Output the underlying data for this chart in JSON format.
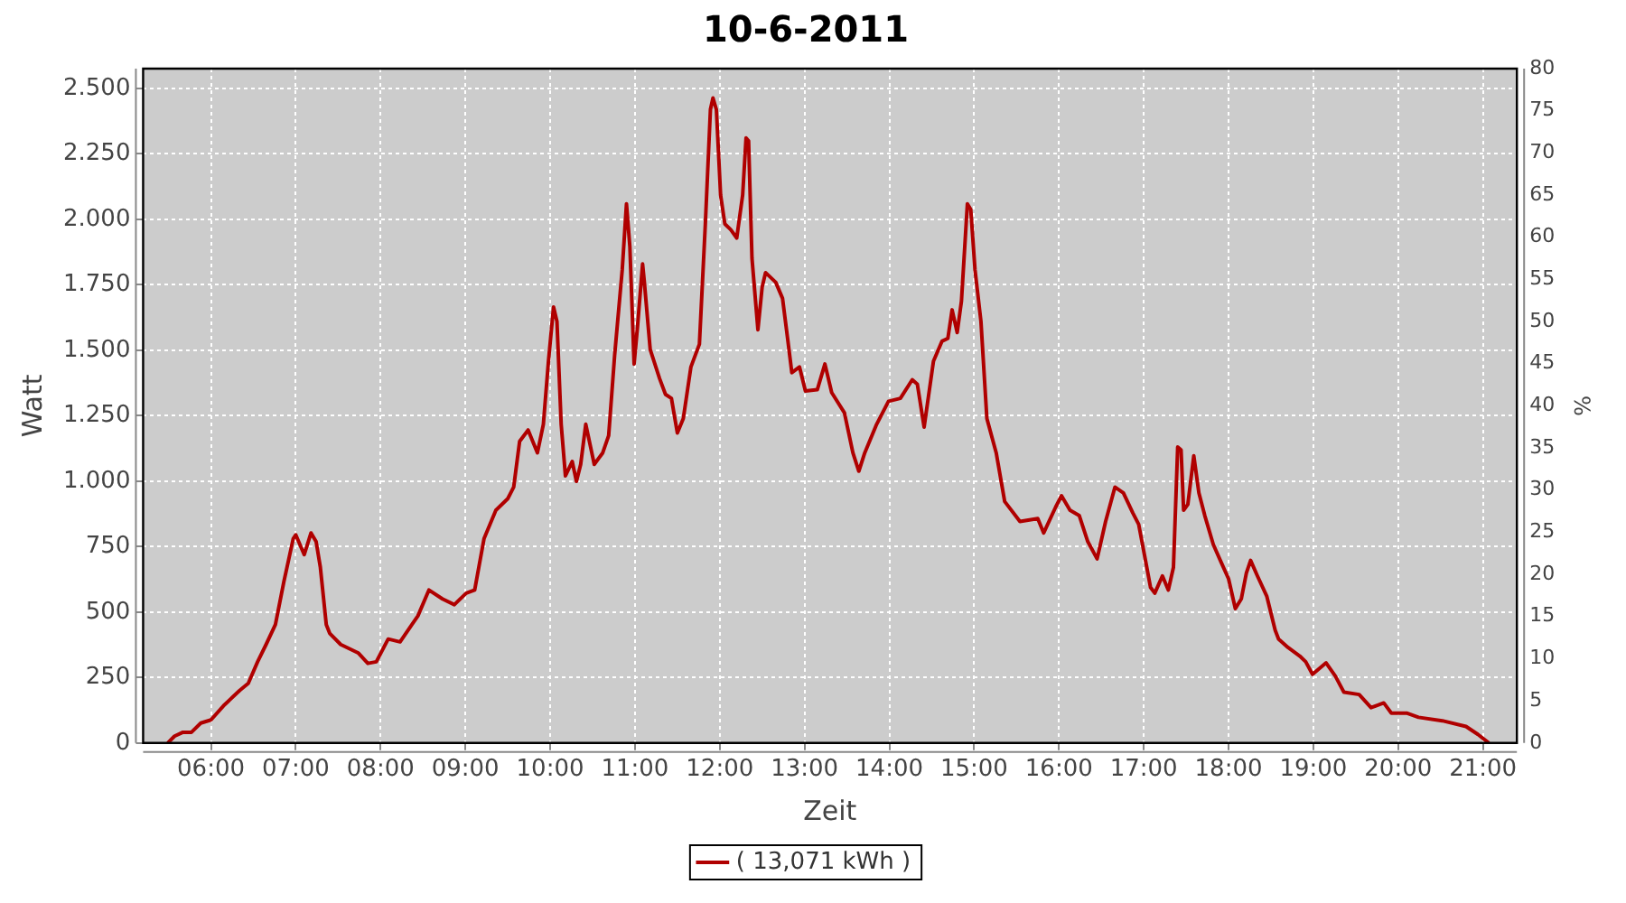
{
  "chart_data": {
    "type": "line",
    "title": "10-6-2011",
    "xlabel": "Zeit",
    "ylabel": "Watt",
    "y2label": "%",
    "x": [
      5.49,
      5.57,
      5.67,
      5.77,
      5.88,
      6.0,
      6.16,
      6.34,
      6.44,
      6.55,
      6.65,
      6.76,
      6.86,
      6.97,
      7.0,
      7.1,
      7.18,
      7.24,
      7.29,
      7.36,
      7.4,
      7.53,
      7.74,
      7.85,
      7.95,
      8.09,
      8.23,
      8.37,
      8.44,
      8.57,
      8.73,
      8.87,
      9.01,
      9.11,
      9.22,
      9.36,
      9.5,
      9.57,
      9.64,
      9.74,
      9.85,
      9.92,
      9.98,
      10.04,
      10.08,
      10.13,
      10.18,
      10.26,
      10.31,
      10.36,
      10.42,
      10.52,
      10.62,
      10.69,
      10.76,
      10.85,
      10.9,
      10.94,
      10.99,
      11.03,
      11.09,
      11.11,
      11.18,
      11.29,
      11.36,
      11.43,
      11.5,
      11.57,
      11.66,
      11.76,
      11.83,
      11.89,
      11.92,
      11.96,
      12.01,
      12.06,
      12.13,
      12.2,
      12.27,
      12.31,
      12.34,
      12.38,
      12.45,
      12.5,
      12.54,
      12.66,
      12.74,
      12.8,
      12.85,
      12.94,
      13.01,
      13.15,
      13.24,
      13.32,
      13.47,
      13.57,
      13.64,
      13.71,
      13.85,
      13.99,
      14.13,
      14.27,
      14.33,
      14.41,
      14.52,
      14.62,
      14.69,
      14.74,
      14.8,
      14.85,
      14.92,
      14.96,
      15.01,
      15.08,
      15.15,
      15.26,
      15.36,
      15.54,
      15.75,
      15.82,
      15.96,
      16.03,
      16.13,
      16.24,
      16.34,
      16.45,
      16.55,
      16.66,
      16.76,
      16.87,
      16.94,
      17.01,
      17.08,
      17.13,
      17.22,
      17.29,
      17.35,
      17.4,
      17.44,
      17.47,
      17.52,
      17.59,
      17.65,
      17.72,
      17.82,
      17.91,
      18.0,
      18.08,
      18.15,
      18.21,
      18.26,
      18.34,
      18.45,
      18.55,
      18.59,
      18.7,
      18.84,
      18.91,
      18.99,
      19.15,
      19.26,
      19.36,
      19.54,
      19.68,
      19.83,
      19.92,
      20.1,
      20.24,
      20.52,
      20.8,
      20.94,
      21.07
    ],
    "series": [
      {
        "name": "( 13,071 kWh )",
        "color": "#b00000",
        "values": [
          0,
          26,
          41,
          41,
          76,
          88,
          146,
          201,
          228,
          310,
          376,
          452,
          616,
          780,
          795,
          719,
          802,
          769,
          671,
          452,
          419,
          376,
          343,
          304,
          310,
          397,
          386,
          452,
          485,
          584,
          550,
          528,
          572,
          584,
          780,
          889,
          933,
          977,
          1152,
          1195,
          1108,
          1217,
          1458,
          1665,
          1610,
          1217,
          1020,
          1075,
          999,
          1064,
          1217,
          1064,
          1108,
          1174,
          1479,
          1807,
          2059,
          1895,
          1447,
          1589,
          1829,
          1763,
          1502,
          1392,
          1331,
          1316,
          1184,
          1239,
          1436,
          1523,
          1982,
          2419,
          2463,
          2419,
          2092,
          1982,
          1960,
          1928,
          2092,
          2310,
          2299,
          1851,
          1578,
          1741,
          1796,
          1759,
          1698,
          1545,
          1414,
          1436,
          1344,
          1349,
          1447,
          1338,
          1261,
          1108,
          1038,
          1108,
          1217,
          1305,
          1316,
          1387,
          1370,
          1206,
          1458,
          1534,
          1545,
          1654,
          1567,
          1687,
          2059,
          2037,
          1807,
          1610,
          1239,
          1108,
          922,
          846,
          857,
          802,
          900,
          944,
          889,
          868,
          769,
          703,
          846,
          977,
          955,
          879,
          835,
          715,
          594,
          572,
          638,
          584,
          671,
          1130,
          1119,
          889,
          911,
          1097,
          955,
          868,
          758,
          692,
          627,
          513,
          550,
          649,
          697,
          638,
          561,
          430,
          397,
          365,
          332,
          310,
          262,
          306,
          255,
          194,
          185,
          135,
          153,
          114,
          114,
          98,
          85,
          63,
          33,
          0
        ]
      }
    ],
    "xlim": [
      5.2,
      21.4
    ],
    "xticks": [
      {
        "value": 6,
        "label": "06:00"
      },
      {
        "value": 7,
        "label": "07:00"
      },
      {
        "value": 8,
        "label": "08:00"
      },
      {
        "value": 9,
        "label": "09:00"
      },
      {
        "value": 10,
        "label": "10:00"
      },
      {
        "value": 11,
        "label": "11:00"
      },
      {
        "value": 12,
        "label": "12:00"
      },
      {
        "value": 13,
        "label": "13:00"
      },
      {
        "value": 14,
        "label": "14:00"
      },
      {
        "value": 15,
        "label": "15:00"
      },
      {
        "value": 16,
        "label": "16:00"
      },
      {
        "value": 17,
        "label": "17:00"
      },
      {
        "value": 18,
        "label": "18:00"
      },
      {
        "value": 19,
        "label": "19:00"
      },
      {
        "value": 20,
        "label": "20:00"
      },
      {
        "value": 21,
        "label": "21:00"
      }
    ],
    "ylim": [
      0,
      2575
    ],
    "yticks": [
      0,
      250,
      500,
      750,
      {
        "value": 1000,
        "label": "1.000"
      },
      {
        "value": 1250,
        "label": "1.250"
      },
      {
        "value": 1500,
        "label": "1.500"
      },
      {
        "value": 1750,
        "label": "1.750"
      },
      {
        "value": 2000,
        "label": "2.000"
      },
      {
        "value": 2250,
        "label": "2.250"
      },
      {
        "value": 2500,
        "label": "2.500"
      }
    ],
    "y2lim": [
      0,
      80
    ],
    "y2ticks": [
      0,
      5,
      10,
      15,
      20,
      25,
      30,
      35,
      40,
      45,
      50,
      55,
      60,
      65,
      70,
      75,
      80
    ],
    "grid": true,
    "legend": "bottom",
    "marker": "none",
    "line_style": "solid"
  }
}
